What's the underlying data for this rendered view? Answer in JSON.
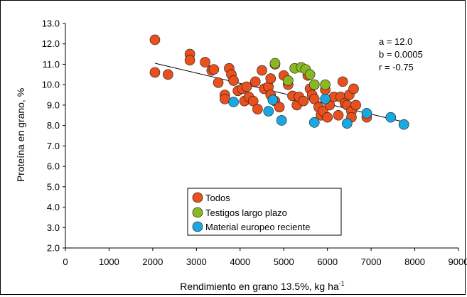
{
  "chart_data": {
    "type": "scatter",
    "xlabel": "Rendimiento en grano 13.5%, kg ha",
    "xlabel_sup": "-1",
    "ylabel": "Proteína en grano, %",
    "xlim": [
      0,
      9000
    ],
    "ylim": [
      2.0,
      13.0
    ],
    "x_ticks": [
      "0",
      "1000",
      "2000",
      "3000",
      "4000",
      "5000",
      "6000",
      "7000",
      "8000",
      "9000"
    ],
    "y_ticks": [
      "2.0",
      "3.0",
      "4.0",
      "5.0",
      "6.0",
      "7.0",
      "8.0",
      "9.0",
      "10.0",
      "11.0",
      "12.0",
      "13.0"
    ],
    "grid": false,
    "legend_position": "bottom-center",
    "annotations": [
      "a = 12.0",
      "b = 0.0005",
      "r = -0.75"
    ],
    "trendline": {
      "x": [
        2050,
        7700
      ],
      "y": [
        11.05,
        8.2
      ]
    },
    "series": [
      {
        "name": "Todos",
        "color": "#e8501e",
        "points": [
          [
            2050,
            12.2
          ],
          [
            2050,
            10.6
          ],
          [
            2350,
            10.5
          ],
          [
            2850,
            11.5
          ],
          [
            2850,
            11.2
          ],
          [
            3200,
            11.1
          ],
          [
            3350,
            10.7
          ],
          [
            3400,
            10.75
          ],
          [
            3500,
            10.1
          ],
          [
            3650,
            9.5
          ],
          [
            3650,
            9.3
          ],
          [
            3750,
            10.8
          ],
          [
            3800,
            10.5
          ],
          [
            3850,
            10.2
          ],
          [
            3950,
            9.7
          ],
          [
            4050,
            9.8
          ],
          [
            4100,
            9.2
          ],
          [
            4150,
            9.9
          ],
          [
            4200,
            9.4
          ],
          [
            4300,
            9.2
          ],
          [
            4350,
            10.15
          ],
          [
            4400,
            8.8
          ],
          [
            4500,
            10.7
          ],
          [
            4550,
            9.8
          ],
          [
            4650,
            9.9
          ],
          [
            4700,
            10.3
          ],
          [
            4700,
            9.5
          ],
          [
            4800,
            9.2
          ],
          [
            4800,
            11.0
          ],
          [
            4900,
            8.9
          ],
          [
            5000,
            10.45
          ],
          [
            5100,
            10.0
          ],
          [
            5200,
            9.45
          ],
          [
            5300,
            9.0
          ],
          [
            5350,
            9.4
          ],
          [
            5450,
            9.2
          ],
          [
            5550,
            10.45
          ],
          [
            5600,
            9.8
          ],
          [
            5650,
            9.5
          ],
          [
            5700,
            10.0
          ],
          [
            5700,
            9.3
          ],
          [
            5800,
            8.9
          ],
          [
            5850,
            8.5
          ],
          [
            5900,
            8.7
          ],
          [
            5950,
            9.75
          ],
          [
            6000,
            8.4
          ],
          [
            6050,
            9.0
          ],
          [
            6150,
            9.4
          ],
          [
            6250,
            8.5
          ],
          [
            6300,
            9.4
          ],
          [
            6350,
            10.15
          ],
          [
            6400,
            9.1
          ],
          [
            6450,
            9.0
          ],
          [
            6500,
            9.5
          ],
          [
            6550,
            8.7
          ],
          [
            6550,
            8.4
          ],
          [
            6600,
            9.8
          ],
          [
            6650,
            9.0
          ],
          [
            6900,
            8.4
          ]
        ]
      },
      {
        "name": "Testigos largo plazo",
        "color": "#8ab824",
        "points": [
          [
            4800,
            11.05
          ],
          [
            5100,
            10.2
          ],
          [
            5250,
            10.8
          ],
          [
            5400,
            10.85
          ],
          [
            5500,
            10.75
          ],
          [
            5600,
            10.5
          ],
          [
            5700,
            10.0
          ],
          [
            5950,
            10.0
          ]
        ]
      },
      {
        "name": "Material europeo reciente",
        "color": "#1aa8e0",
        "points": [
          [
            3850,
            9.15
          ],
          [
            4650,
            8.7
          ],
          [
            4750,
            9.25
          ],
          [
            4950,
            8.25
          ],
          [
            5700,
            8.15
          ],
          [
            5950,
            9.3
          ],
          [
            6450,
            8.1
          ],
          [
            6900,
            8.6
          ],
          [
            7450,
            8.4
          ],
          [
            7750,
            8.05
          ]
        ]
      }
    ]
  }
}
